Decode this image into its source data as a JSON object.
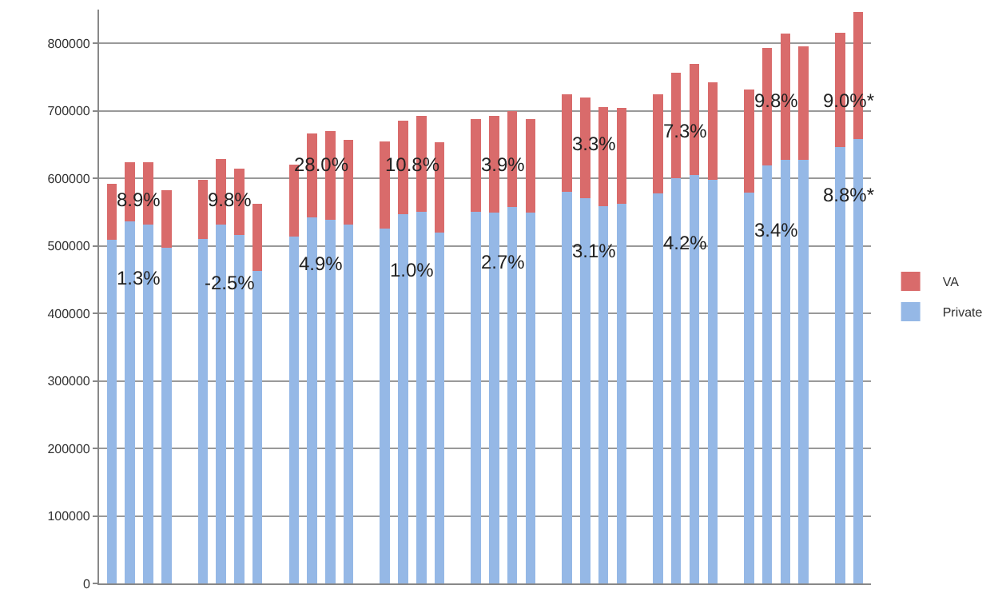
{
  "chart_data": {
    "type": "bar",
    "stacked": true,
    "categories": [
      null,
      null,
      null,
      null,
      null,
      null,
      null,
      null,
      null,
      null,
      null,
      null,
      null,
      null,
      null,
      null,
      null,
      null,
      null,
      null,
      null,
      null,
      null,
      null,
      null,
      null,
      null,
      null,
      null,
      null,
      null,
      null,
      null,
      null,
      null,
      null,
      null,
      null,
      null,
      null,
      null,
      null
    ],
    "series": [
      {
        "name": "Private",
        "color": "#95b8e6",
        "values": [
          509000,
          536000,
          531000,
          497000,
          null,
          510000,
          532000,
          516000,
          463000,
          null,
          514000,
          542000,
          539000,
          531000,
          null,
          526000,
          547000,
          550000,
          520000,
          null,
          550000,
          549000,
          558000,
          549000,
          null,
          580000,
          571000,
          559000,
          562000,
          null,
          578000,
          600000,
          605000,
          598000,
          null,
          579000,
          619000,
          628000,
          627000,
          null,
          646000,
          658000
        ]
      },
      {
        "name": "VA",
        "color": "#d96b6b",
        "values": [
          83000,
          88000,
          93000,
          86000,
          null,
          88000,
          97000,
          99000,
          99000,
          null,
          106000,
          125000,
          131000,
          126000,
          null,
          129000,
          139000,
          143000,
          133000,
          null,
          138000,
          144000,
          142000,
          139000,
          null,
          145000,
          149000,
          147000,
          142000,
          null,
          147000,
          157000,
          164000,
          144000,
          null,
          153000,
          174000,
          186000,
          169000,
          null,
          170000,
          188000
        ]
      }
    ],
    "ylim": [
      0,
      850000
    ],
    "yticks": [
      0,
      100000,
      200000,
      300000,
      400000,
      500000,
      600000,
      700000,
      800000
    ],
    "grid": "y",
    "legend": "right",
    "annotations": [
      {
        "text": "8.9%",
        "y": 569000
      },
      {
        "text": "1.3%",
        "y": 453000
      },
      {
        "text": "9.8%",
        "y": 569000
      },
      {
        "text": "-2.5%",
        "y": 445000
      },
      {
        "text": "28.0%",
        "y": 621000
      },
      {
        "text": "4.9%",
        "y": 474000
      },
      {
        "text": "10.8%",
        "y": 621000
      },
      {
        "text": "1.0%",
        "y": 464000
      },
      {
        "text": "3.9%",
        "y": 621000
      },
      {
        "text": "2.7%",
        "y": 476000
      },
      {
        "text": "3.3%",
        "y": 652000
      },
      {
        "text": "3.1%",
        "y": 493000
      },
      {
        "text": "7.3%",
        "y": 670000
      },
      {
        "text": "4.2%",
        "y": 504000
      },
      {
        "text": "9.8%",
        "y": 715000
      },
      {
        "text": "3.4%",
        "y": 524000
      },
      {
        "text": "9.0%*",
        "y": 715000
      },
      {
        "text": "8.8%*",
        "y": 575000
      }
    ]
  }
}
